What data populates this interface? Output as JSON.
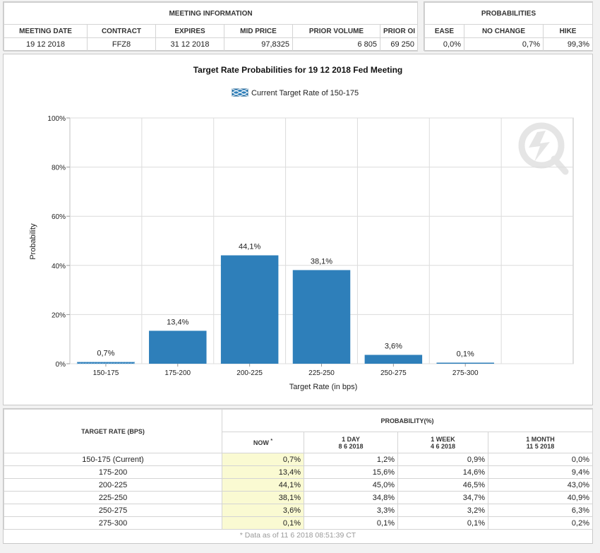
{
  "meeting_info": {
    "title": "MEETING INFORMATION",
    "headers": [
      "MEETING DATE",
      "CONTRACT",
      "EXPIRES",
      "MID PRICE",
      "PRIOR VOLUME",
      "PRIOR OI"
    ],
    "values": [
      "19 12 2018",
      "FFZ8",
      "31 12 2018",
      "97,8325",
      "6 805",
      "69 250"
    ]
  },
  "probabilities": {
    "title": "PROBABILITIES",
    "headers": [
      "EASE",
      "NO CHANGE",
      "HIKE"
    ],
    "values": [
      "0,0%",
      "0,7%",
      "99,3%"
    ]
  },
  "chart_data": {
    "type": "bar",
    "title": "Target Rate Probabilities for 19 12 2018 Fed Meeting",
    "legend": "Current Target Rate of 150-175",
    "xlabel": "Target Rate (in bps)",
    "ylabel": "Probability",
    "categories": [
      "150-175",
      "175-200",
      "200-225",
      "225-250",
      "250-275",
      "275-300"
    ],
    "values": [
      0.7,
      13.4,
      44.1,
      38.1,
      3.6,
      0.1
    ],
    "data_labels": [
      "0,7%",
      "13,4%",
      "44,1%",
      "38,1%",
      "3,6%",
      "0,1%"
    ],
    "yticks": [
      "0%",
      "20%",
      "40%",
      "60%",
      "80%",
      "100%"
    ],
    "ylim": [
      0,
      100
    ],
    "current_category": "150-175",
    "bar_color": "#2e7fba",
    "grid": true
  },
  "prob_table": {
    "header_target": "TARGET RATE (BPS)",
    "header_prob": "PROBABILITY(%)",
    "col_now": "NOW",
    "col_now_mark": "*",
    "col_1day": "1 DAY",
    "col_1day_date": "8 6 2018",
    "col_1week": "1 WEEK",
    "col_1week_date": "4 6 2018",
    "col_1month": "1 MONTH",
    "col_1month_date": "11 5 2018",
    "rows": [
      {
        "rate": "150-175 (Current)",
        "now": "0,7%",
        "d1": "1,2%",
        "w1": "0,9%",
        "m1": "0,0%"
      },
      {
        "rate": "175-200",
        "now": "13,4%",
        "d1": "15,6%",
        "w1": "14,6%",
        "m1": "9,4%"
      },
      {
        "rate": "200-225",
        "now": "44,1%",
        "d1": "45,0%",
        "w1": "46,5%",
        "m1": "43,0%"
      },
      {
        "rate": "225-250",
        "now": "38,1%",
        "d1": "34,8%",
        "w1": "34,7%",
        "m1": "40,9%"
      },
      {
        "rate": "250-275",
        "now": "3,6%",
        "d1": "3,3%",
        "w1": "3,2%",
        "m1": "6,3%"
      },
      {
        "rate": "275-300",
        "now": "0,1%",
        "d1": "0,1%",
        "w1": "0,1%",
        "m1": "0,2%"
      }
    ],
    "footnote": "* Data as of 11 6 2018 08:51:39 CT"
  }
}
